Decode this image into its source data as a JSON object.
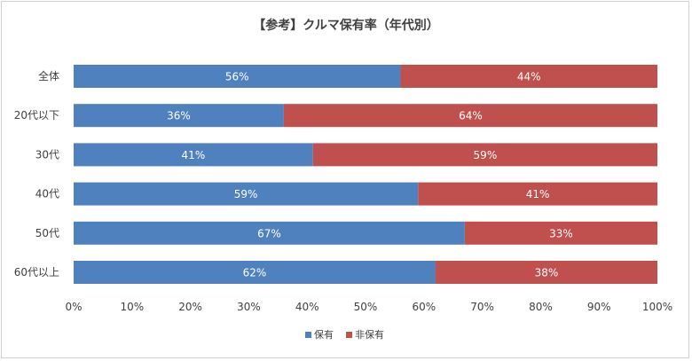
{
  "chart_data": {
    "type": "bar",
    "orientation": "horizontal",
    "stacked": "percent",
    "title": "【参考】クルマ保有率（年代別）",
    "categories": [
      "全体",
      "20代以下",
      "30代",
      "40代",
      "50代",
      "60代以上"
    ],
    "series": [
      {
        "name": "保有",
        "color": "#4e81bd",
        "values": [
          56,
          36,
          41,
          59,
          67,
          62
        ],
        "labels": [
          "56%",
          "36%",
          "41%",
          "59%",
          "67%",
          "62%"
        ]
      },
      {
        "name": "非保有",
        "color": "#c0504d",
        "values": [
          44,
          64,
          59,
          41,
          33,
          38
        ],
        "labels": [
          "44%",
          "64%",
          "59%",
          "41%",
          "33%",
          "38%"
        ]
      }
    ],
    "xlim": [
      0,
      100
    ],
    "xticks": [
      "0%",
      "10%",
      "20%",
      "30%",
      "40%",
      "50%",
      "60%",
      "70%",
      "80%",
      "90%",
      "100%"
    ],
    "grid": false,
    "legend_position": "bottom"
  }
}
